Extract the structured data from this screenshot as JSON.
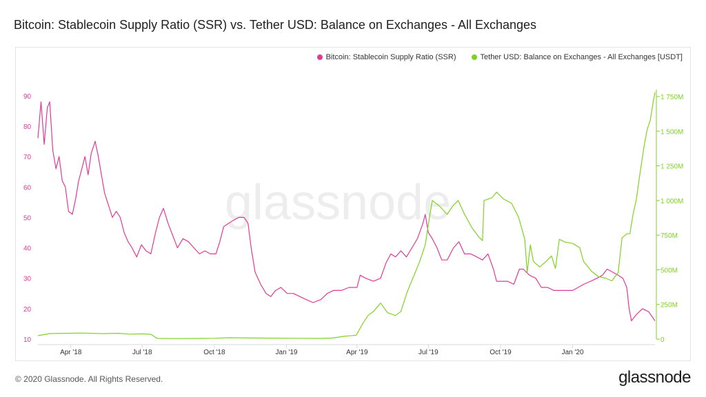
{
  "title": "Bitcoin: Stablecoin Supply Ratio (SSR) vs. Tether USD: Balance on Exchanges - All Exchanges",
  "footer": {
    "copyright": "© 2020 Glassnode. All Rights Reserved.",
    "logo": "glassnode"
  },
  "watermark": "glassnode",
  "colors": {
    "ssr": "#e0399a",
    "usdt": "#7ed321",
    "axis": "#d9d9d9"
  },
  "chart_data": {
    "type": "line",
    "title": "Bitcoin: Stablecoin Supply Ratio (SSR) vs. Tether USD: Balance on Exchanges - All Exchanges",
    "legend_placement": "top-right",
    "grid": false,
    "x_range": [
      "2018-02-18",
      "2020-04-15"
    ],
    "x_tick_labels": [
      "Apr '18",
      "Jul '18",
      "Oct '18",
      "Jan '19",
      "Apr '19",
      "Jul '19",
      "Oct '19",
      "Jan '20"
    ],
    "x_tick_dates": [
      "2018-04-01",
      "2018-07-01",
      "2018-10-01",
      "2019-01-01",
      "2019-04-01",
      "2019-07-01",
      "2019-10-01",
      "2020-01-01"
    ],
    "y_left": {
      "ylim": [
        10,
        92
      ],
      "ticks": [
        "10",
        "20",
        "30",
        "40",
        "50",
        "60",
        "70",
        "80",
        "90"
      ]
    },
    "y_right": {
      "ylim": [
        0,
        1800
      ],
      "unit": "M",
      "ticks": [
        "0",
        "250M",
        "500M",
        "750M",
        "1 000M",
        "1 250M",
        "1 500M",
        "1 750M"
      ]
    },
    "series": [
      {
        "name": "Bitcoin: Stablecoin Supply Ratio (SSR)",
        "axis": "left",
        "points": [
          [
            "2018-02-18",
            76
          ],
          [
            "2018-02-22",
            88
          ],
          [
            "2018-02-26",
            74
          ],
          [
            "2018-03-02",
            86
          ],
          [
            "2018-03-05",
            88
          ],
          [
            "2018-03-09",
            72
          ],
          [
            "2018-03-13",
            66
          ],
          [
            "2018-03-17",
            70
          ],
          [
            "2018-03-21",
            62
          ],
          [
            "2018-03-25",
            60
          ],
          [
            "2018-03-29",
            52
          ],
          [
            "2018-04-03",
            51
          ],
          [
            "2018-04-07",
            56
          ],
          [
            "2018-04-11",
            62
          ],
          [
            "2018-04-15",
            66
          ],
          [
            "2018-04-19",
            70
          ],
          [
            "2018-04-23",
            64
          ],
          [
            "2018-04-27",
            71
          ],
          [
            "2018-05-02",
            75
          ],
          [
            "2018-05-06",
            70
          ],
          [
            "2018-05-10",
            64
          ],
          [
            "2018-05-14",
            58
          ],
          [
            "2018-05-19",
            54
          ],
          [
            "2018-05-24",
            50
          ],
          [
            "2018-05-29",
            52
          ],
          [
            "2018-06-03",
            50
          ],
          [
            "2018-06-08",
            45
          ],
          [
            "2018-06-13",
            42
          ],
          [
            "2018-06-18",
            40
          ],
          [
            "2018-06-24",
            37
          ],
          [
            "2018-06-30",
            41
          ],
          [
            "2018-07-06",
            39
          ],
          [
            "2018-07-12",
            38
          ],
          [
            "2018-07-18",
            45
          ],
          [
            "2018-07-23",
            50
          ],
          [
            "2018-07-28",
            53
          ],
          [
            "2018-08-03",
            48
          ],
          [
            "2018-08-09",
            44
          ],
          [
            "2018-08-15",
            40
          ],
          [
            "2018-08-22",
            43
          ],
          [
            "2018-08-29",
            42
          ],
          [
            "2018-09-05",
            40
          ],
          [
            "2018-09-12",
            38
          ],
          [
            "2018-09-19",
            39
          ],
          [
            "2018-09-26",
            38
          ],
          [
            "2018-10-03",
            38
          ],
          [
            "2018-10-08",
            42
          ],
          [
            "2018-10-13",
            47
          ],
          [
            "2018-10-19",
            48
          ],
          [
            "2018-10-25",
            49
          ],
          [
            "2018-11-01",
            50
          ],
          [
            "2018-11-08",
            50
          ],
          [
            "2018-11-13",
            48
          ],
          [
            "2018-11-17",
            40
          ],
          [
            "2018-11-22",
            32
          ],
          [
            "2018-11-29",
            28
          ],
          [
            "2018-12-06",
            25
          ],
          [
            "2018-12-12",
            24
          ],
          [
            "2018-12-18",
            26
          ],
          [
            "2018-12-25",
            27
          ],
          [
            "2019-01-02",
            25
          ],
          [
            "2019-01-10",
            25
          ],
          [
            "2019-01-18",
            24
          ],
          [
            "2019-01-26",
            23
          ],
          [
            "2019-02-04",
            22
          ],
          [
            "2019-02-14",
            23
          ],
          [
            "2019-02-22",
            25
          ],
          [
            "2019-03-02",
            26
          ],
          [
            "2019-03-12",
            26
          ],
          [
            "2019-03-22",
            27
          ],
          [
            "2019-04-01",
            27
          ],
          [
            "2019-04-05",
            31
          ],
          [
            "2019-04-12",
            30
          ],
          [
            "2019-04-22",
            29
          ],
          [
            "2019-05-01",
            30
          ],
          [
            "2019-05-08",
            35
          ],
          [
            "2019-05-14",
            38
          ],
          [
            "2019-05-20",
            37
          ],
          [
            "2019-05-27",
            39
          ],
          [
            "2019-06-03",
            37
          ],
          [
            "2019-06-10",
            40
          ],
          [
            "2019-06-17",
            43
          ],
          [
            "2019-06-24",
            48
          ],
          [
            "2019-06-27",
            51
          ],
          [
            "2019-07-01",
            45
          ],
          [
            "2019-07-06",
            43
          ],
          [
            "2019-07-12",
            40
          ],
          [
            "2019-07-18",
            36
          ],
          [
            "2019-07-25",
            36
          ],
          [
            "2019-08-02",
            40
          ],
          [
            "2019-08-09",
            42
          ],
          [
            "2019-08-16",
            38
          ],
          [
            "2019-08-24",
            38
          ],
          [
            "2019-09-01",
            37
          ],
          [
            "2019-09-08",
            36
          ],
          [
            "2019-09-15",
            38
          ],
          [
            "2019-09-22",
            33
          ],
          [
            "2019-09-26",
            29
          ],
          [
            "2019-10-02",
            29
          ],
          [
            "2019-10-10",
            29
          ],
          [
            "2019-10-18",
            28
          ],
          [
            "2019-10-25",
            33
          ],
          [
            "2019-10-30",
            33
          ],
          [
            "2019-11-07",
            31
          ],
          [
            "2019-11-15",
            30
          ],
          [
            "2019-11-22",
            27
          ],
          [
            "2019-11-30",
            27
          ],
          [
            "2019-12-08",
            26
          ],
          [
            "2019-12-16",
            26
          ],
          [
            "2019-12-24",
            26
          ],
          [
            "2020-01-01",
            26
          ],
          [
            "2020-01-08",
            27
          ],
          [
            "2020-01-15",
            28
          ],
          [
            "2020-01-24",
            29
          ],
          [
            "2020-02-01",
            30
          ],
          [
            "2020-02-08",
            31
          ],
          [
            "2020-02-14",
            33
          ],
          [
            "2020-02-21",
            32
          ],
          [
            "2020-02-28",
            31
          ],
          [
            "2020-03-05",
            30
          ],
          [
            "2020-03-10",
            27
          ],
          [
            "2020-03-13",
            20
          ],
          [
            "2020-03-16",
            16
          ],
          [
            "2020-03-22",
            18
          ],
          [
            "2020-03-30",
            20
          ],
          [
            "2020-04-07",
            19
          ],
          [
            "2020-04-15",
            16
          ]
        ]
      },
      {
        "name": "Tether USD: Balance on Exchanges - All Exchanges [USDT]",
        "axis": "right",
        "points": [
          [
            "2018-02-18",
            25
          ],
          [
            "2018-03-05",
            40
          ],
          [
            "2018-03-25",
            42
          ],
          [
            "2018-04-15",
            44
          ],
          [
            "2018-05-10",
            40
          ],
          [
            "2018-06-01",
            42
          ],
          [
            "2018-06-15",
            36
          ],
          [
            "2018-07-01",
            38
          ],
          [
            "2018-07-12",
            35
          ],
          [
            "2018-07-20",
            5
          ],
          [
            "2018-08-15",
            4
          ],
          [
            "2018-09-15",
            5
          ],
          [
            "2018-10-01",
            6
          ],
          [
            "2018-10-20",
            10
          ],
          [
            "2018-11-15",
            8
          ],
          [
            "2018-12-15",
            7
          ],
          [
            "2019-01-15",
            6
          ],
          [
            "2019-02-15",
            5
          ],
          [
            "2019-03-01",
            8
          ],
          [
            "2019-03-15",
            20
          ],
          [
            "2019-03-31",
            28
          ],
          [
            "2019-04-08",
            110
          ],
          [
            "2019-04-15",
            170
          ],
          [
            "2019-04-22",
            200
          ],
          [
            "2019-05-01",
            260
          ],
          [
            "2019-05-10",
            190
          ],
          [
            "2019-05-20",
            170
          ],
          [
            "2019-05-27",
            200
          ],
          [
            "2019-06-04",
            340
          ],
          [
            "2019-06-12",
            450
          ],
          [
            "2019-06-20",
            560
          ],
          [
            "2019-06-27",
            680
          ],
          [
            "2019-07-03",
            900
          ],
          [
            "2019-07-06",
            1000
          ],
          [
            "2019-07-15",
            960
          ],
          [
            "2019-07-25",
            900
          ],
          [
            "2019-08-01",
            960
          ],
          [
            "2019-08-08",
            1000
          ],
          [
            "2019-08-16",
            900
          ],
          [
            "2019-08-26",
            800
          ],
          [
            "2019-09-03",
            740
          ],
          [
            "2019-09-08",
            710
          ],
          [
            "2019-09-10",
            1000
          ],
          [
            "2019-09-20",
            1020
          ],
          [
            "2019-09-26",
            1060
          ],
          [
            "2019-10-05",
            1010
          ],
          [
            "2019-10-15",
            980
          ],
          [
            "2019-10-24",
            880
          ],
          [
            "2019-11-01",
            720
          ],
          [
            "2019-11-04",
            480
          ],
          [
            "2019-11-08",
            680
          ],
          [
            "2019-11-12",
            560
          ],
          [
            "2019-11-20",
            520
          ],
          [
            "2019-11-28",
            560
          ],
          [
            "2019-12-05",
            600
          ],
          [
            "2019-12-10",
            510
          ],
          [
            "2019-12-15",
            720
          ],
          [
            "2019-12-22",
            700
          ],
          [
            "2020-01-01",
            690
          ],
          [
            "2020-01-10",
            660
          ],
          [
            "2020-01-15",
            560
          ],
          [
            "2020-01-25",
            490
          ],
          [
            "2020-02-03",
            450
          ],
          [
            "2020-02-12",
            440
          ],
          [
            "2020-02-20",
            420
          ],
          [
            "2020-02-28",
            480
          ],
          [
            "2020-03-04",
            730
          ],
          [
            "2020-03-10",
            760
          ],
          [
            "2020-03-14",
            760
          ],
          [
            "2020-03-18",
            900
          ],
          [
            "2020-03-22",
            1000
          ],
          [
            "2020-03-27",
            1200
          ],
          [
            "2020-04-01",
            1390
          ],
          [
            "2020-04-05",
            1510
          ],
          [
            "2020-04-09",
            1580
          ],
          [
            "2020-04-13",
            1720
          ],
          [
            "2020-04-15",
            1780
          ]
        ]
      }
    ]
  }
}
